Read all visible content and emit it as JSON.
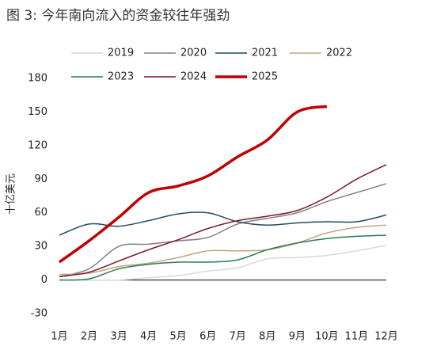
{
  "chart_data": {
    "type": "line",
    "title": "图 3:  今年南向流入的资金较往年强劲",
    "y_label": "十亿美元",
    "categories": [
      "1月",
      "2月",
      "3月",
      "4月",
      "5月",
      "6月",
      "7月",
      "8月",
      "9月",
      "10月",
      "11月",
      "12月"
    ],
    "ylim": [
      -30,
      180
    ],
    "yticks": [
      -30,
      0,
      30,
      60,
      90,
      120,
      150,
      180
    ],
    "grid": false,
    "series": [
      {
        "name": "2019",
        "color": "#d9d9d9",
        "linewidth": 1.5,
        "values": [
          0,
          0,
          0,
          2,
          4,
          8,
          11,
          19,
          20,
          22,
          26,
          31
        ]
      },
      {
        "name": "2020",
        "color": "#808080",
        "linewidth": 1.5,
        "values": [
          3,
          10,
          30,
          32,
          35,
          38,
          50,
          55,
          60,
          70,
          78,
          86
        ]
      },
      {
        "name": "2021",
        "color": "#1f4e5f",
        "linewidth": 1.5,
        "values": [
          40,
          50,
          48,
          53,
          59,
          60,
          52,
          49,
          51,
          52,
          52,
          58
        ]
      },
      {
        "name": "2022",
        "color": "#c8a27c",
        "linewidth": 1.5,
        "values": [
          5,
          6,
          12,
          15,
          20,
          26,
          26,
          27,
          33,
          42,
          47,
          49
        ]
      },
      {
        "name": "2023",
        "color": "#2e7d4f",
        "linewidth": 1.5,
        "values": [
          0,
          1,
          10,
          14,
          16,
          16,
          18,
          27,
          33,
          37,
          39,
          40
        ]
      },
      {
        "name": "2024",
        "color": "#7b1a2a",
        "linewidth": 1.5,
        "values": [
          3,
          7,
          17,
          27,
          36,
          46,
          53,
          57,
          62,
          74,
          90,
          103
        ]
      },
      {
        "name": "2025",
        "color": "#c00000",
        "linewidth": 3.5,
        "values": [
          16,
          35,
          56,
          78,
          84,
          93,
          110,
          125,
          150,
          155,
          null,
          null
        ]
      }
    ]
  }
}
